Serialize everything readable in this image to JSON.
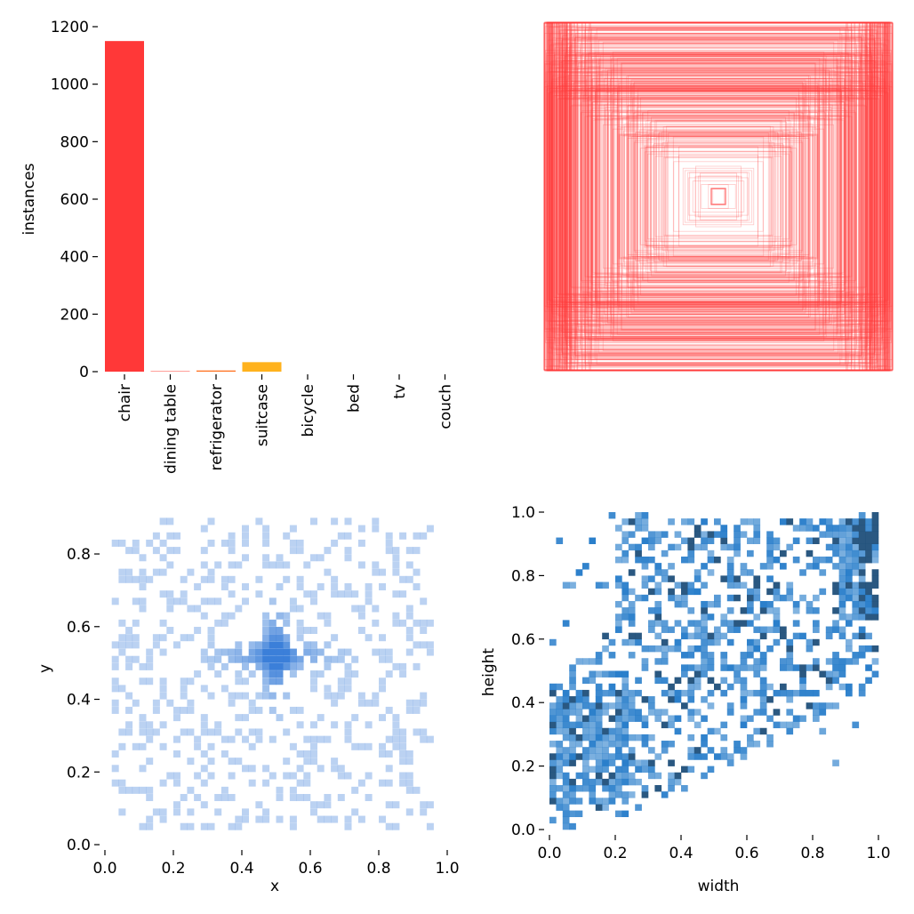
{
  "chart_data": [
    {
      "type": "bar",
      "panel": "class-instances",
      "categories": [
        "chair",
        "dining table",
        "refrigerator",
        "suitcase",
        "bicycle",
        "bed",
        "tv",
        "couch"
      ],
      "values": [
        1150,
        3,
        4,
        33,
        0,
        0,
        0,
        0
      ],
      "colors": [
        "#ff3838",
        "#ff9d97",
        "#ff701f",
        "#ffb21d",
        "#cfd231",
        "#48f90a",
        "#92cc17",
        "#3ddb86"
      ],
      "ylabel": "instances",
      "ylim": [
        0,
        1200
      ],
      "yticks": [
        0,
        200,
        400,
        600,
        800,
        1000,
        1200
      ]
    },
    {
      "type": "boxes-overlay",
      "panel": "label-boxes",
      "color": "#ff3838"
    },
    {
      "type": "heatmap",
      "panel": "xy-distribution",
      "xlabel": "x",
      "ylabel": "y",
      "xlim": [
        0,
        1
      ],
      "ylim": [
        0,
        0.92
      ],
      "xticks": [
        0.0,
        0.2,
        0.4,
        0.6,
        0.8,
        1.0
      ],
      "yticks": [
        0.0,
        0.2,
        0.4,
        0.6,
        0.8
      ],
      "color": "#3b7fd9"
    },
    {
      "type": "heatmap",
      "panel": "wh-distribution",
      "xlabel": "width",
      "ylabel": "height",
      "xlim": [
        0,
        1
      ],
      "ylim": [
        0,
        1
      ],
      "xticks": [
        0.0,
        0.2,
        0.4,
        0.6,
        0.8,
        1.0
      ],
      "yticks": [
        0.0,
        0.2,
        0.4,
        0.6,
        0.8,
        1.0
      ],
      "color": "#1f78c8"
    }
  ]
}
